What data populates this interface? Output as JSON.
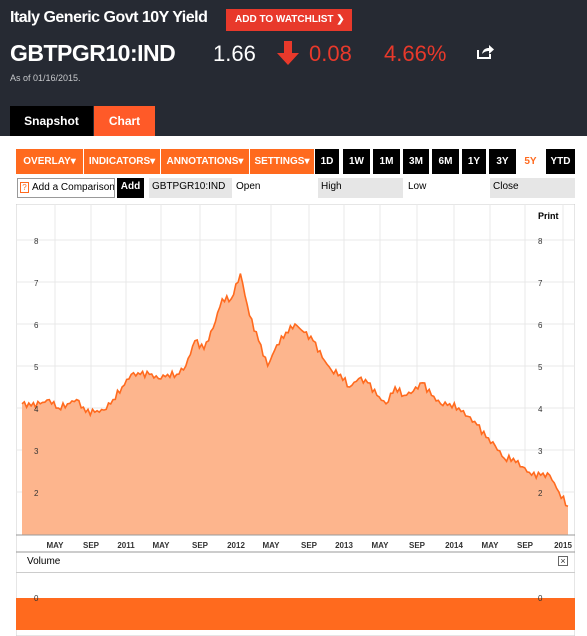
{
  "header": {
    "title": "Italy Generic Govt 10Y Yield",
    "watchlist_button": "ADD TO WATCHLIST",
    "ticker": "GBTPGR10:IND",
    "price": "1.66",
    "change": "0.08",
    "change_pct": "4.66%",
    "as_of": "As of 01/16/2015.",
    "down_color": "#e8392b"
  },
  "tabs": [
    {
      "label": "Snapshot"
    },
    {
      "label": "Chart",
      "active": true
    }
  ],
  "toolbar": {
    "menus": [
      "OVERLAY",
      "INDICATORS",
      "ANNOTATIONS",
      "SETTINGS"
    ],
    "ranges": [
      "1D",
      "1W",
      "1M",
      "3M",
      "6M",
      "1Y",
      "3Y",
      "5Y",
      "YTD"
    ],
    "active_range": "5Y"
  },
  "compare": {
    "placeholder": "Add a Comparison",
    "add_label": "Add",
    "symbol": "GBTPGR10:IND",
    "open_label": "Open",
    "high_label": "High",
    "low_label": "Low",
    "close_label": "Close"
  },
  "chart": {
    "print_label": "Print",
    "volume_label": "Volume",
    "accent": "#ff6a1e",
    "fill": "#fdb58d"
  },
  "chart_data": {
    "type": "area",
    "x_tick_labels": [
      "MAY",
      "SEP",
      "2011",
      "MAY",
      "SEP",
      "2012",
      "MAY",
      "SEP",
      "2013",
      "MAY",
      "SEP",
      "2014",
      "MAY",
      "SEP",
      "2015"
    ],
    "y_ticks": [
      2,
      3,
      4,
      5,
      6,
      7,
      8
    ],
    "ylim": [
      1.0,
      8.5
    ],
    "x": [
      "2010-01",
      "2010-02",
      "2010-03",
      "2010-04",
      "2010-05",
      "2010-06",
      "2010-07",
      "2010-08",
      "2010-09",
      "2010-10",
      "2010-11",
      "2010-12",
      "2011-01",
      "2011-02",
      "2011-03",
      "2011-04",
      "2011-05",
      "2011-06",
      "2011-07",
      "2011-08",
      "2011-09",
      "2011-10",
      "2011-11",
      "2011-12",
      "2012-01",
      "2012-02",
      "2012-03",
      "2012-04",
      "2012-05",
      "2012-06",
      "2012-07",
      "2012-08",
      "2012-09",
      "2012-10",
      "2012-11",
      "2012-12",
      "2013-01",
      "2013-02",
      "2013-03",
      "2013-04",
      "2013-05",
      "2013-06",
      "2013-07",
      "2013-08",
      "2013-09",
      "2013-10",
      "2013-11",
      "2013-12",
      "2014-01",
      "2014-02",
      "2014-03",
      "2014-04",
      "2014-05",
      "2014-06",
      "2014-07",
      "2014-08",
      "2014-09",
      "2014-10",
      "2014-11",
      "2014-12",
      "2015-01"
    ],
    "values": [
      4.1,
      4.05,
      4.1,
      4.2,
      4.0,
      4.1,
      4.2,
      3.9,
      3.9,
      3.95,
      4.2,
      4.5,
      4.8,
      4.8,
      4.8,
      4.7,
      4.8,
      4.8,
      5.0,
      5.6,
      5.4,
      5.9,
      6.6,
      6.6,
      7.2,
      6.2,
      5.6,
      5.0,
      5.5,
      5.8,
      6.0,
      5.8,
      5.6,
      5.2,
      4.9,
      4.8,
      4.5,
      4.7,
      4.6,
      4.3,
      4.1,
      4.5,
      4.3,
      4.4,
      4.6,
      4.3,
      4.1,
      4.1,
      4.0,
      3.8,
      3.6,
      3.3,
      3.1,
      2.8,
      2.8,
      2.6,
      2.4,
      2.4,
      2.4,
      2.0,
      1.66
    ],
    "volume_tick": "0"
  }
}
